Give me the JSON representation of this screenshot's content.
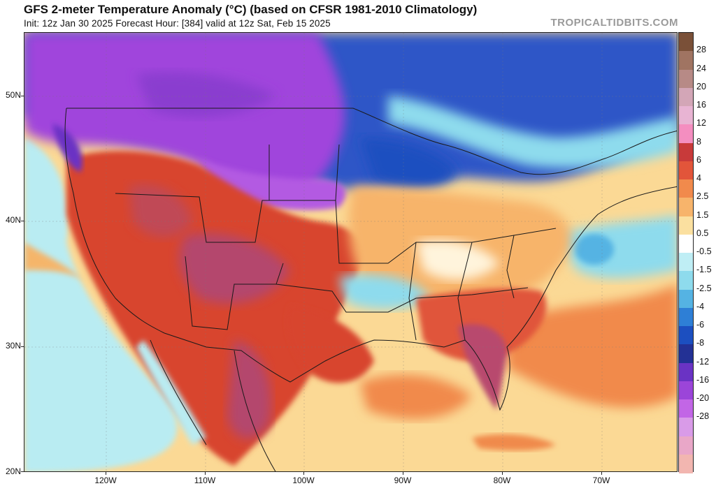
{
  "header": {
    "title": "GFS 2-meter Temperature Anomaly (°C) (based on CFSR 1981-2010 Climatology)",
    "subtitle": "Init: 12z Jan 30 2025   Forecast Hour: [384]   valid at 12z Sat, Feb 15 2025",
    "credit": "TROPICALTIDBITS.COM"
  },
  "axes": {
    "lat_labels": [
      "50N",
      "40N",
      "30N",
      "20N"
    ],
    "lon_labels": [
      "120W",
      "110W",
      "100W",
      "90W",
      "80W",
      "70W"
    ]
  },
  "colorbar": {
    "labels": [
      "28",
      "24",
      "20",
      "16",
      "12",
      "8",
      "6",
      "4",
      "2.5",
      "1.5",
      "0.5",
      "-0.5",
      "-1.5",
      "-2.5",
      "-4",
      "-6",
      "-8",
      "-12",
      "-16",
      "-20",
      "-28"
    ],
    "colors": [
      "#7a5038",
      "#a07462",
      "#b78a86",
      "#d3a6b7",
      "#e8b4d3",
      "#f48ec0",
      "#c83a3a",
      "#e2553a",
      "#f18a4c",
      "#f7b46b",
      "#fbe0a0",
      "#ffffff",
      "#bfeef5",
      "#8edbed",
      "#55b3e3",
      "#2e7fd6",
      "#1c4fc0",
      "#233195",
      "#6a33c4",
      "#9b45d9",
      "#c266e6",
      "#d99be8",
      "#e9a7c8",
      "#f2b6b0"
    ]
  },
  "map_colors": {
    "ocean": "#fbd995",
    "cold_pacific": "#b9ecf2",
    "west_warm": "#d8452f",
    "west_hot": "#b4466d",
    "plains_cold": "#a044dc",
    "north_cold": "#2f57c7",
    "east_mild": "#f7b46b",
    "southeast_warm": "#e0553a",
    "florida_hot": "#b84a6e",
    "atlantic_cold": "#67b4e6",
    "cuba": "#f08a4c"
  }
}
